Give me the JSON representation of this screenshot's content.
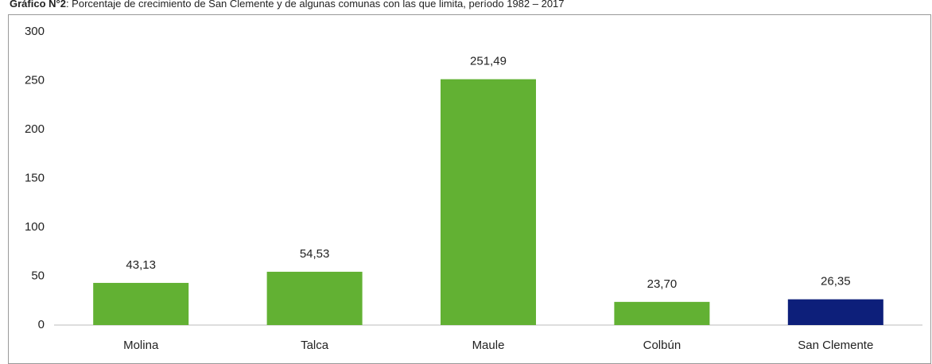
{
  "chart_data": {
    "type": "bar",
    "title_label": "Gráfico N°2",
    "title": ": Porcentaje de crecimiento de San Clemente y de algunas comunas con las que limita, período 1982 – 2017",
    "categories": [
      "Molina",
      "Talca",
      "Maule",
      "Colbún",
      "San Clemente"
    ],
    "values": [
      43.13,
      54.53,
      251.49,
      23.7,
      26.35
    ],
    "value_labels": [
      "43,13",
      "54,53",
      "251,49",
      "23,70",
      "26,35"
    ],
    "colors": [
      "#62b133",
      "#62b133",
      "#62b133",
      "#62b133",
      "#0d1f7a"
    ],
    "ylim": [
      0,
      300
    ],
    "yticks": [
      0,
      50,
      100,
      150,
      200,
      250,
      300
    ],
    "grid": false
  }
}
